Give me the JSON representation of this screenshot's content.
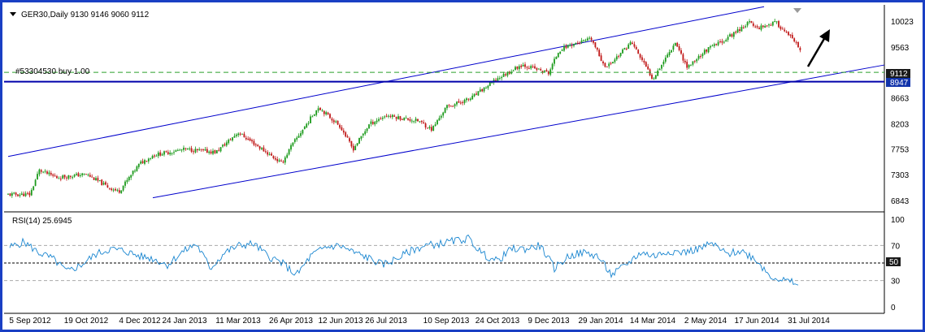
{
  "colors": {
    "frame": "#1a3fc4",
    "bull_candle": "#1b9a1b",
    "bear_candle": "#c01818",
    "channel_line": "#0000cc",
    "support_line": "#0000aa",
    "order_line": "#2aa02a",
    "rsi_line": "#1a86d0",
    "price_marker_bg": "#1a1a1a",
    "support_marker_bg": "#1133aa",
    "arrow": "#000000"
  },
  "header": {
    "symbol_line": "GER30,Daily  9130 9146 9060 9112",
    "dropdown_icon": "triangle-down-icon",
    "order_label": "#53304530 buy 1.00"
  },
  "price_axis": {
    "ticks": [
      "10023",
      "9563",
      "9112",
      "8663",
      "8203",
      "7753",
      "7303",
      "6843"
    ],
    "current_price": "9112",
    "support_level": "8947"
  },
  "rsi": {
    "label": "RSI(14) 25.6945",
    "ticks": [
      "100",
      "70",
      "50",
      "30",
      "0"
    ],
    "midline_marker": "50"
  },
  "x_axis": {
    "dates": [
      "5 Sep 2012",
      "19 Oct 2012",
      "4 Dec 2012",
      "24 Jan 2013",
      "11 Mar 2013",
      "26 Apr 2013",
      "12 Jun 2013",
      "26 Jul 2013",
      "10 Sep 2013",
      "24 Oct 2013",
      "9 Dec 2013",
      "29 Jan 2014",
      "14 Mar 2014",
      "2 May 2014",
      "17 Jun 2014",
      "31 Jul 2014"
    ]
  },
  "chart_data": {
    "type": "candlestick",
    "symbol": "GER30",
    "timeframe": "Daily",
    "last_bar": {
      "open": 9130,
      "high": 9146,
      "low": 9060,
      "close": 9112
    },
    "ylim": [
      6700,
      10250
    ],
    "x_ticks": [
      "5 Sep 2012",
      "19 Oct 2012",
      "4 Dec 2012",
      "24 Jan 2013",
      "11 Mar 2013",
      "26 Apr 2013",
      "12 Jun 2013",
      "26 Jul 2013",
      "10 Sep 2013",
      "24 Oct 2013",
      "9 Dec 2013",
      "29 Jan 2014",
      "14 Mar 2014",
      "2 May 2014",
      "17 Jun 2014",
      "31 Jul 2014"
    ],
    "close_path": [
      {
        "date": "5 Sep 2012",
        "close": 6950
      },
      {
        "date": "12 Sep 2012",
        "close": 7380
      },
      {
        "date": "26 Sep 2012",
        "close": 7250
      },
      {
        "date": "19 Oct 2012",
        "close": 7310
      },
      {
        "date": "7 Nov 2012",
        "close": 7080
      },
      {
        "date": "16 Nov 2012",
        "close": 7000
      },
      {
        "date": "4 Dec 2012",
        "close": 7500
      },
      {
        "date": "20 Dec 2012",
        "close": 7650
      },
      {
        "date": "24 Jan 2013",
        "close": 7750
      },
      {
        "date": "20 Feb 2013",
        "close": 7700
      },
      {
        "date": "11 Mar 2013",
        "close": 8050
      },
      {
        "date": "25 Mar 2013",
        "close": 7850
      },
      {
        "date": "18 Apr 2013",
        "close": 7500
      },
      {
        "date": "26 Apr 2013",
        "close": 7800
      },
      {
        "date": "22 May 2013",
        "close": 8500
      },
      {
        "date": "12 Jun 2013",
        "close": 8150
      },
      {
        "date": "24 Jun 2013",
        "close": 7750
      },
      {
        "date": "10 Jul 2013",
        "close": 8200
      },
      {
        "date": "26 Jul 2013",
        "close": 8350
      },
      {
        "date": "20 Aug 2013",
        "close": 8250
      },
      {
        "date": "30 Aug 2013",
        "close": 8100
      },
      {
        "date": "10 Sep 2013",
        "close": 8500
      },
      {
        "date": "1 Oct 2013",
        "close": 8650
      },
      {
        "date": "24 Oct 2013",
        "close": 9000
      },
      {
        "date": "15 Nov 2013",
        "close": 9250
      },
      {
        "date": "9 Dec 2013",
        "close": 9100
      },
      {
        "date": "19 Dec 2013",
        "close": 9500
      },
      {
        "date": "30 Dec 2013",
        "close": 9600
      },
      {
        "date": "20 Jan 2014",
        "close": 9700
      },
      {
        "date": "3 Feb 2014",
        "close": 9200
      },
      {
        "date": "29 Jan 2014",
        "close": 9350
      },
      {
        "date": "24 Feb 2014",
        "close": 9650
      },
      {
        "date": "14 Mar 2014",
        "close": 9000
      },
      {
        "date": "4 Apr 2014",
        "close": 9650
      },
      {
        "date": "15 Apr 2014",
        "close": 9200
      },
      {
        "date": "2 May 2014",
        "close": 9500
      },
      {
        "date": "20 May 2014",
        "close": 9700
      },
      {
        "date": "10 Jun 2014",
        "close": 10000
      },
      {
        "date": "17 Jun 2014",
        "close": 9900
      },
      {
        "date": "3 Jul 2014",
        "close": 10000
      },
      {
        "date": "17 Jul 2014",
        "close": 9700
      },
      {
        "date": "31 Jul 2014",
        "close": 9300
      },
      {
        "date": "8 Aug 2014",
        "close": 9112
      }
    ],
    "levels": {
      "current": 9112,
      "support": 8947,
      "buy_order": 9112
    },
    "channel": {
      "upper": [
        {
          "date": "5 Sep 2012",
          "value": 7700
        },
        {
          "date": "17 Jun 2014",
          "value": 10250
        }
      ],
      "lower": [
        {
          "date": "4 Dec 2012",
          "value": 6850
        },
        {
          "date": "31 Jul 2014",
          "value": 9000
        }
      ]
    },
    "rsi": {
      "period": 14,
      "last": 25.6945,
      "ylim": [
        0,
        100
      ],
      "levels": [
        70,
        50,
        30
      ],
      "values": [
        68,
        74,
        62,
        55,
        40,
        48,
        60,
        66,
        64,
        58,
        55,
        48,
        62,
        72,
        44,
        62,
        70,
        72,
        58,
        50,
        36,
        58,
        68,
        70,
        62,
        56,
        48,
        55,
        64,
        70,
        72,
        75,
        78,
        60,
        52,
        66,
        66,
        70,
        44,
        58,
        62,
        58,
        36,
        48,
        62,
        58,
        64,
        62,
        66,
        72,
        60,
        64,
        55,
        36,
        30,
        26
      ]
    }
  }
}
